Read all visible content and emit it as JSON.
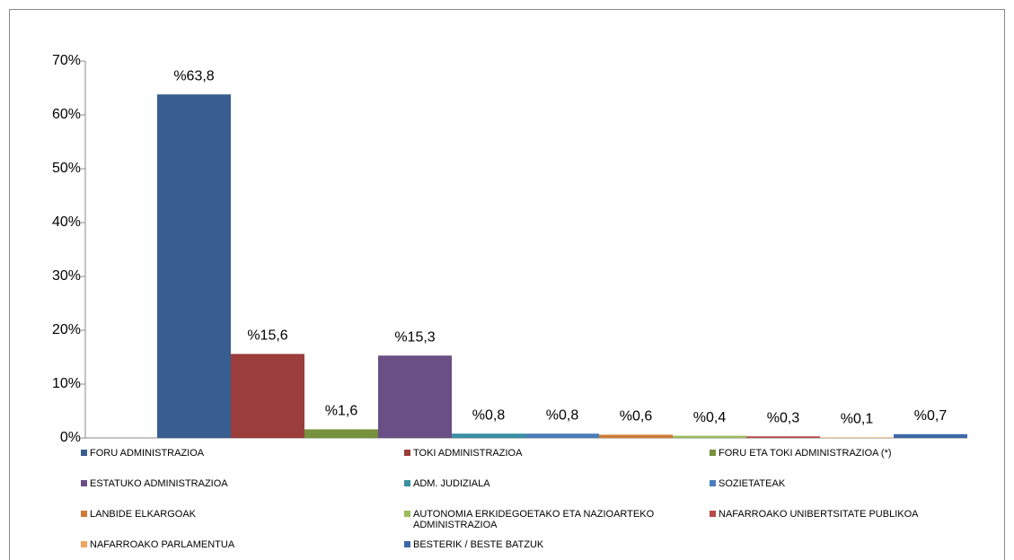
{
  "chart_data": {
    "type": "bar",
    "series": [
      {
        "name": "FORU ADMINISTRAZIOA",
        "color": "#375e8f",
        "values": [
          63.8
        ],
        "value_labels": [
          "%63,8"
        ]
      },
      {
        "name": "TOKI ADMINISTRAZIOA",
        "color": "#9b3d3b",
        "values": [
          15.6
        ],
        "value_labels": [
          "%15,6"
        ]
      },
      {
        "name": "FORU ETA TOKI ADMINISTRAZIOA (*)",
        "color": "#76923c",
        "values": [
          1.6
        ],
        "value_labels": [
          "%1,6"
        ]
      },
      {
        "name": "ESTATUKO ADMINISTRAZIOA",
        "color": "#6a4f86",
        "values": [
          15.3
        ],
        "value_labels": [
          "%15,3"
        ]
      },
      {
        "name": "ADM. JUDIZIALA",
        "color": "#3a8fa3",
        "values": [
          0.8
        ],
        "value_labels": [
          "%0,8"
        ]
      },
      {
        "name": "SOZIETATEAK",
        "color": "#4a7ebb",
        "values": [
          0.8
        ],
        "value_labels": [
          "%0,8"
        ]
      },
      {
        "name": "LANBIDE ELKARGOAK",
        "color": "#d07a35",
        "values": [
          0.6
        ],
        "value_labels": [
          "%0,6"
        ]
      },
      {
        "name": "AUTONOMIA ERKIDEGOETAKO ETA NAZIOARTEKO ADMINISTRAZIOA",
        "color": "#9bbb59",
        "values": [
          0.4
        ],
        "value_labels": [
          "%0,4"
        ]
      },
      {
        "name": "NAFARROAKO UNIBERTSITATE PUBLIKOA",
        "color": "#b84a4a",
        "values": [
          0.3
        ],
        "value_labels": [
          "%0,3"
        ]
      },
      {
        "name": "NAFARROAKO PARLAMENTUA",
        "color": "#f2a45c",
        "values": [
          0.1
        ],
        "value_labels": [
          "%0,1"
        ]
      },
      {
        "name": "BESTERIK / BESTE BATZUK",
        "color": "#3d68a6",
        "values": [
          0.7
        ],
        "value_labels": [
          "%0,7"
        ]
      }
    ],
    "ylim": [
      0,
      70
    ],
    "yticks": [
      {
        "value": 0,
        "label": "0%"
      },
      {
        "value": 10,
        "label": "10%"
      },
      {
        "value": 20,
        "label": "20%"
      },
      {
        "value": 30,
        "label": "30%"
      },
      {
        "value": 40,
        "label": "40%"
      },
      {
        "value": 50,
        "label": "50%"
      },
      {
        "value": 60,
        "label": "60%"
      },
      {
        "value": 70,
        "label": "70%"
      }
    ],
    "legend": "bottom"
  }
}
